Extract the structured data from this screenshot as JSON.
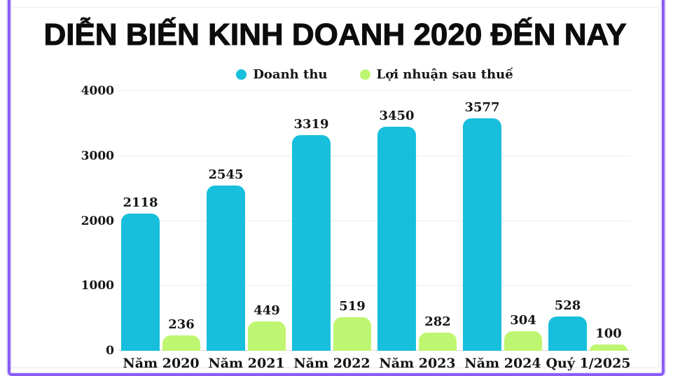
{
  "frame": {
    "border_color": "#8b5cf6"
  },
  "chart_data": {
    "type": "bar",
    "title": "DIỄN BIẾN KINH DOANH 2020 ĐẾN NAY",
    "categories": [
      "Năm 2020",
      "Năm 2021",
      "Năm 2022",
      "Năm 2023",
      "Năm 2024",
      "Quý 1/2025"
    ],
    "series": [
      {
        "name": "Doanh thu",
        "color": "#17bfdc",
        "values": [
          2118,
          2545,
          3319,
          3450,
          3577,
          528
        ]
      },
      {
        "name": "Lợi nhuận sau thuế",
        "color": "#bff671",
        "values": [
          236,
          449,
          519,
          282,
          304,
          100
        ]
      }
    ],
    "xlabel": "",
    "ylabel": "",
    "ylim": [
      0,
      4000
    ],
    "yticks": [
      0,
      1000,
      2000,
      3000,
      4000
    ],
    "grid": true,
    "legend_position": "top",
    "data_labels": true
  }
}
